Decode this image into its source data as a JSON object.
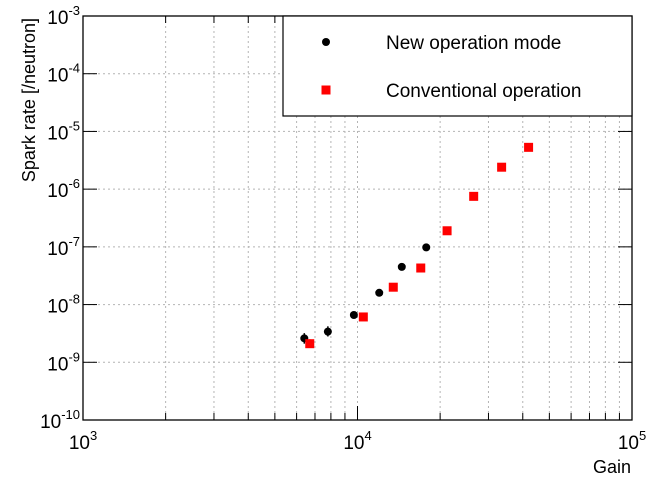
{
  "chart_data": {
    "type": "scatter",
    "title": "",
    "xlabel": "Gain",
    "ylabel": "Spark rate [/neutron]",
    "xscale": "log",
    "yscale": "log",
    "xlim": [
      1000,
      100000
    ],
    "ylim": [
      1e-10,
      0.001
    ],
    "grid": true,
    "legend_placement": "top-right",
    "x_tick_labels": [
      {
        "base": "10",
        "exp": "3"
      },
      {
        "base": "10",
        "exp": "4"
      },
      {
        "base": "10",
        "exp": "5"
      }
    ],
    "y_tick_labels": [
      {
        "base": "10",
        "exp": "-10"
      },
      {
        "base": "10",
        "exp": "-9"
      },
      {
        "base": "10",
        "exp": "-8"
      },
      {
        "base": "10",
        "exp": "-7"
      },
      {
        "base": "10",
        "exp": "-6"
      },
      {
        "base": "10",
        "exp": "-5"
      },
      {
        "base": "10",
        "exp": "-4"
      },
      {
        "base": "10",
        "exp": "-3"
      }
    ],
    "series": [
      {
        "name": "New operation mode",
        "marker": "circle",
        "color": "#000000",
        "points": [
          {
            "x": 6400,
            "y": 2.6e-09,
            "ylo": 2.1e-09,
            "yhi": 3.2e-09
          },
          {
            "x": 7800,
            "y": 3.4e-09,
            "ylo": 2.8e-09,
            "yhi": 4.2e-09
          },
          {
            "x": 9700,
            "y": 6.6e-09,
            "ylo": 5.9e-09,
            "yhi": 7.4e-09
          },
          {
            "x": 12000,
            "y": 1.6e-08,
            "ylo": 1.5e-08,
            "yhi": 1.7e-08
          },
          {
            "x": 14500,
            "y": 4.5e-08,
            "ylo": 4.1e-08,
            "yhi": 4.9e-08
          },
          {
            "x": 17800,
            "y": 9.8e-08,
            "ylo": 9.2e-08,
            "yhi": 1.04e-07
          }
        ]
      },
      {
        "name": "Conventional operation",
        "marker": "square",
        "color": "#ff0000",
        "points": [
          {
            "x": 6700,
            "y": 2.1e-09,
            "ylo": 1.8e-09,
            "yhi": 2.5e-09
          },
          {
            "x": 10500,
            "y": 6.1e-09,
            "ylo": 5.7e-09,
            "yhi": 6.5e-09
          },
          {
            "x": 13500,
            "y": 2e-08,
            "ylo": 1.7e-08,
            "yhi": 2.3e-08
          },
          {
            "x": 17000,
            "y": 4.3e-08,
            "ylo": 4e-08,
            "yhi": 4.6e-08
          },
          {
            "x": 21200,
            "y": 1.9e-07,
            "ylo": 1.8e-07,
            "yhi": 2e-07
          },
          {
            "x": 26500,
            "y": 7.5e-07,
            "ylo": 7.1e-07,
            "yhi": 7.9e-07
          },
          {
            "x": 33500,
            "y": 2.4e-06,
            "ylo": 2.2e-06,
            "yhi": 2.6e-06
          },
          {
            "x": 42000,
            "y": 5.3e-06,
            "ylo": 4.6e-06,
            "yhi": 6.1e-06
          }
        ]
      }
    ]
  }
}
